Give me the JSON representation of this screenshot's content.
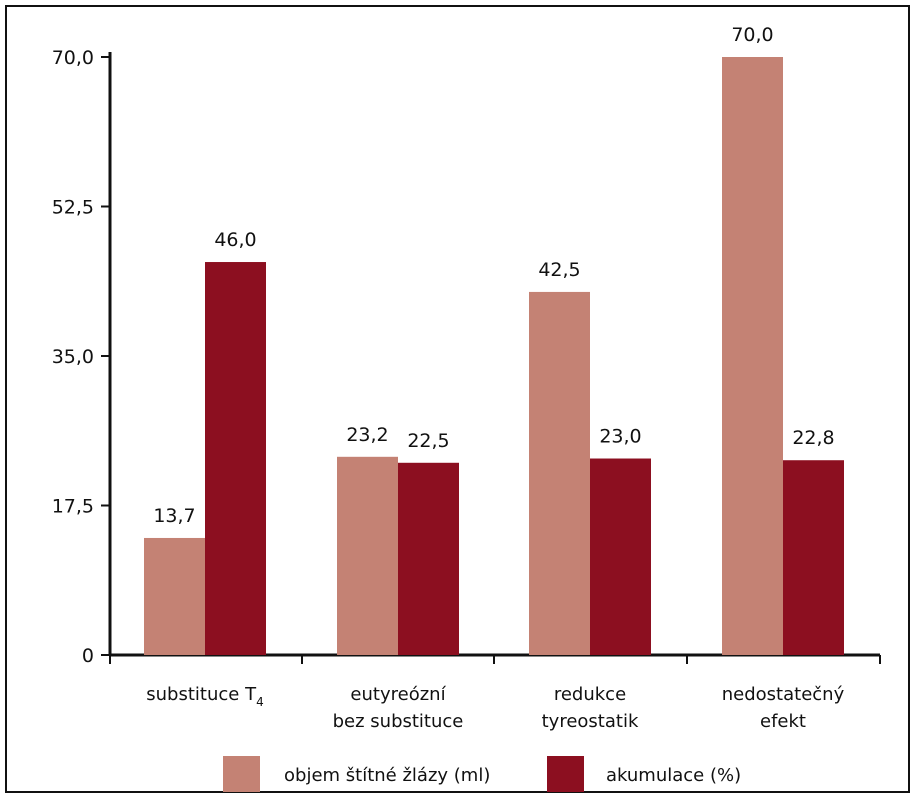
{
  "chart_data": {
    "type": "bar",
    "categories": [
      [
        "substituce T",
        "4"
      ],
      [
        "eutyreózní",
        "bez substituce"
      ],
      [
        "redukce",
        "tyreostatik"
      ],
      [
        "nedostatečný",
        "efekt"
      ]
    ],
    "series": [
      {
        "name": "objem štítné žlázy (ml)",
        "color": "#c48274",
        "values": [
          13.7,
          23.2,
          42.5,
          70.0
        ],
        "labels": [
          "13,7",
          "23,2",
          "42,5",
          "70,0"
        ]
      },
      {
        "name": "akumulace (%)",
        "color": "#8c0f20",
        "values": [
          46.0,
          22.5,
          23.0,
          22.8
        ],
        "labels": [
          "46,0",
          "22,5",
          "23,0",
          "22,8"
        ]
      }
    ],
    "ylim": [
      0,
      70
    ],
    "yticks": [
      0,
      17.5,
      35.0,
      52.5,
      70.0
    ],
    "ytick_labels": [
      "0",
      "17,5",
      "35,0",
      "52,5",
      "70,0"
    ],
    "grid": false,
    "legend": "bottom"
  }
}
